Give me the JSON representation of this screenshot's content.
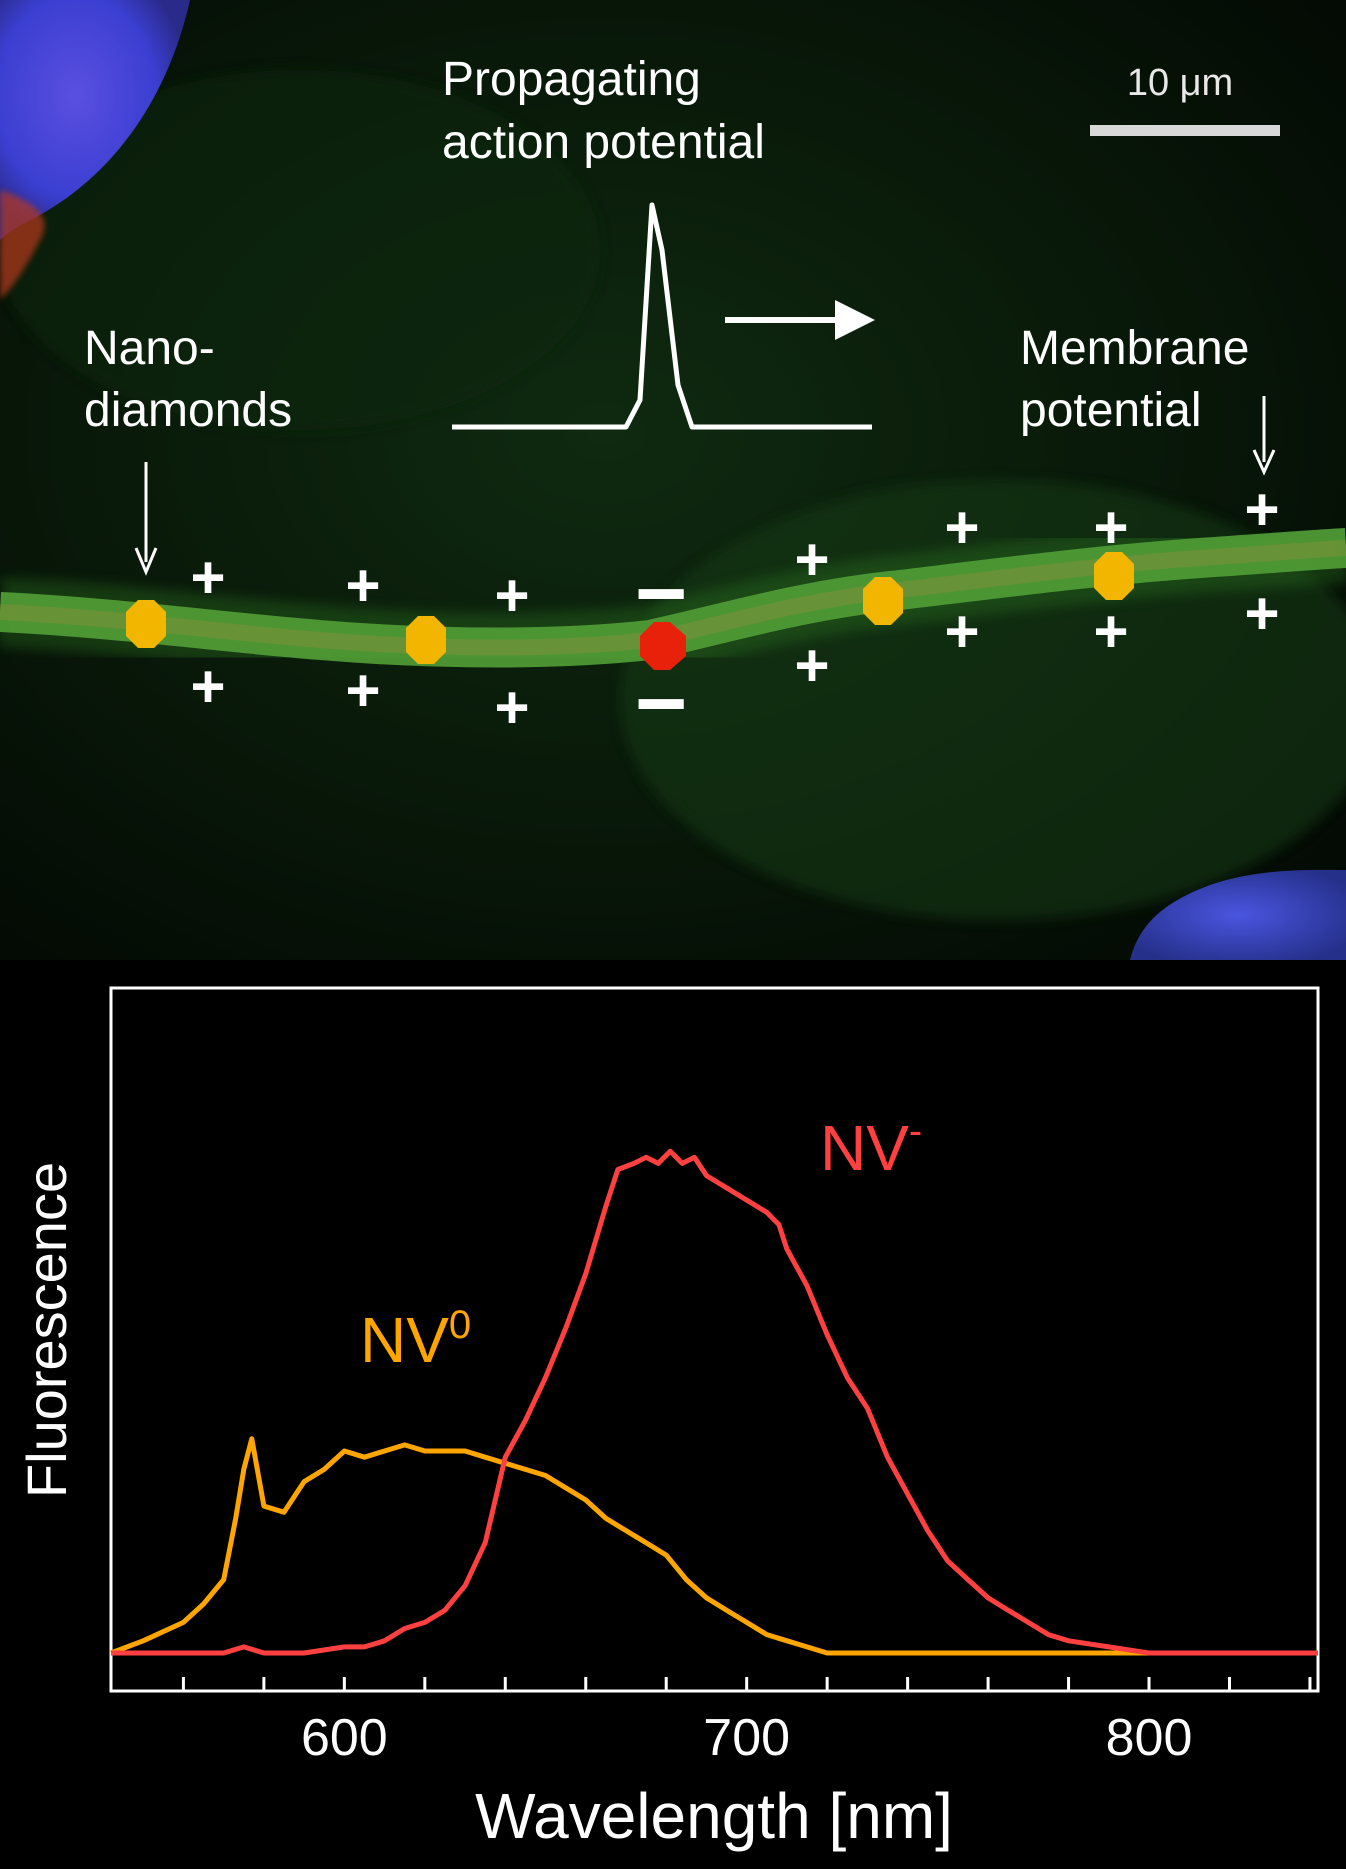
{
  "figure": {
    "scale_bar_label": "10 μm",
    "labels": {
      "action_potential": [
        "Propagating",
        "action potential"
      ],
      "nanodiamonds": [
        "Nano-",
        "diamonds"
      ],
      "membrane_potential": [
        "Membrane",
        "potential"
      ]
    },
    "colors": {
      "nanodiamond_neutral": "#f2b500",
      "nanodiamond_active": "#e8220a",
      "neurite": "#3f8a2a",
      "nucleus": "#3b3fd1",
      "charge_symbols": "#ffffff"
    },
    "charge_symbols": [
      "+",
      "−"
    ]
  },
  "chart_data": {
    "type": "line",
    "xlabel": "Wavelength [nm]",
    "ylabel": "Fluorescence",
    "xlim": [
      542,
      842
    ],
    "ylim": [
      0,
      1.0
    ],
    "x_ticks": [
      600,
      700,
      800
    ],
    "y_ticks": [],
    "grid": false,
    "legend": "inline labels",
    "series": [
      {
        "name": "NV0",
        "label_main": "NV",
        "label_sup": "0",
        "color": "#ffa500",
        "x": [
          542,
          550,
          560,
          565,
          570,
          573,
          575,
          577,
          580,
          585,
          590,
          595,
          600,
          605,
          610,
          615,
          620,
          625,
          630,
          635,
          640,
          645,
          650,
          655,
          660,
          665,
          670,
          675,
          680,
          685,
          690,
          695,
          700,
          705,
          710,
          715,
          720,
          740,
          760,
          780,
          800,
          820,
          842
        ],
        "y": [
          0.0,
          0.02,
          0.05,
          0.08,
          0.12,
          0.22,
          0.3,
          0.35,
          0.24,
          0.23,
          0.28,
          0.3,
          0.33,
          0.32,
          0.33,
          0.34,
          0.33,
          0.33,
          0.33,
          0.32,
          0.31,
          0.3,
          0.29,
          0.27,
          0.25,
          0.22,
          0.2,
          0.18,
          0.16,
          0.12,
          0.09,
          0.07,
          0.05,
          0.03,
          0.02,
          0.01,
          0.0,
          0.0,
          0.0,
          0.0,
          0.0,
          0.0,
          0.0
        ]
      },
      {
        "name": "NV-",
        "label_main": "NV",
        "label_sup": "-",
        "color": "#ff4040",
        "x": [
          542,
          550,
          560,
          570,
          575,
          580,
          590,
          600,
          605,
          610,
          615,
          620,
          625,
          630,
          635,
          640,
          645,
          650,
          655,
          660,
          665,
          668,
          672,
          675,
          678,
          681,
          684,
          687,
          690,
          695,
          700,
          705,
          708,
          710,
          715,
          720,
          725,
          730,
          735,
          740,
          745,
          750,
          755,
          760,
          765,
          770,
          775,
          780,
          790,
          800,
          810,
          820,
          842
        ],
        "y": [
          0.0,
          0.0,
          0.0,
          0.0,
          0.01,
          0.0,
          0.0,
          0.01,
          0.01,
          0.02,
          0.04,
          0.05,
          0.07,
          0.11,
          0.18,
          0.32,
          0.38,
          0.45,
          0.53,
          0.62,
          0.73,
          0.79,
          0.8,
          0.81,
          0.8,
          0.82,
          0.8,
          0.81,
          0.78,
          0.76,
          0.74,
          0.72,
          0.7,
          0.66,
          0.6,
          0.52,
          0.45,
          0.4,
          0.32,
          0.26,
          0.2,
          0.15,
          0.12,
          0.09,
          0.07,
          0.05,
          0.03,
          0.02,
          0.01,
          0.0,
          0.0,
          0.0,
          0.0
        ]
      }
    ]
  }
}
